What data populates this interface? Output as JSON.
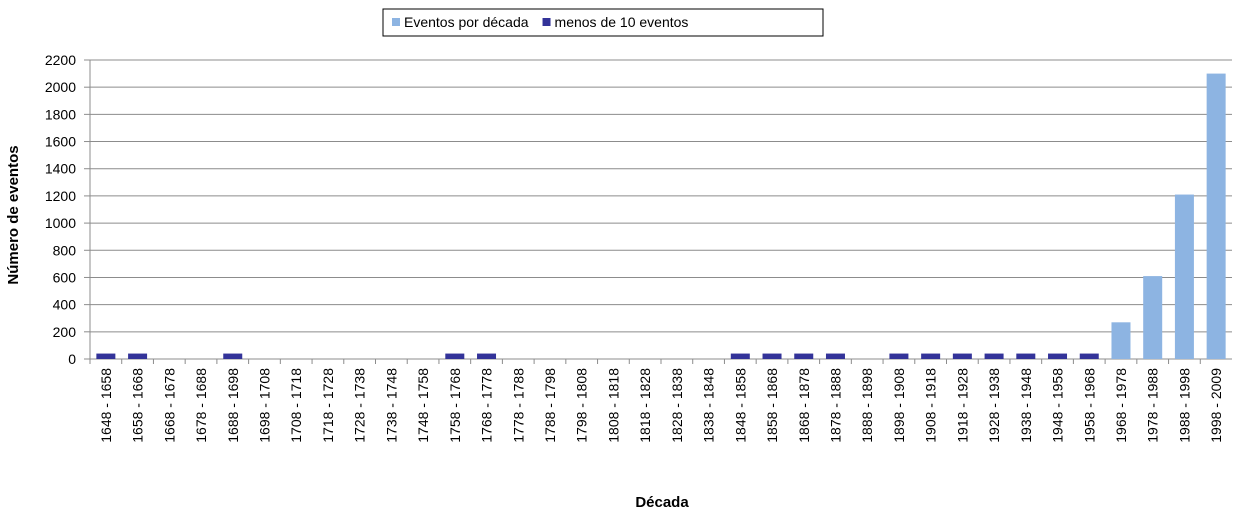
{
  "chart_data": {
    "type": "bar",
    "x_label": "Década",
    "y_label": "Número de eventos",
    "categories": [
      "1648 - 1658",
      "1658 - 1668",
      "1668 - 1678",
      "1678 - 1688",
      "1688 - 1698",
      "1698 - 1708",
      "1708 - 1718",
      "1718 - 1728",
      "1728 - 1738",
      "1738 - 1748",
      "1748 - 1758",
      "1758 - 1768",
      "1768 - 1778",
      "1778 - 1788",
      "1788 - 1798",
      "1798 - 1808",
      "1808 - 1818",
      "1818 - 1828",
      "1828 - 1838",
      "1838 - 1848",
      "1848 - 1858",
      "1858 - 1868",
      "1868 - 1878",
      "1878 - 1888",
      "1888 - 1898",
      "1898 - 1908",
      "1908 - 1918",
      "1918 - 1928",
      "1928 - 1938",
      "1938 - 1948",
      "1948 - 1958",
      "1958 - 1968",
      "1968 - 1978",
      "1978 - 1988",
      "1988 - 1998",
      "1998 - 2009"
    ],
    "series": [
      {
        "name": "Eventos por década",
        "color": "#8db4e2",
        "values": [
          null,
          null,
          null,
          null,
          null,
          null,
          null,
          null,
          null,
          null,
          null,
          null,
          null,
          null,
          null,
          null,
          null,
          null,
          null,
          null,
          null,
          null,
          null,
          null,
          null,
          null,
          null,
          null,
          null,
          null,
          null,
          null,
          270,
          610,
          1210,
          2100
        ]
      },
      {
        "name": "menos de 10 eventos",
        "color": "#333399",
        "values": [
          40,
          40,
          null,
          null,
          40,
          null,
          null,
          null,
          null,
          null,
          null,
          40,
          40,
          null,
          null,
          null,
          null,
          null,
          null,
          null,
          40,
          40,
          40,
          40,
          null,
          40,
          40,
          40,
          40,
          40,
          40,
          40,
          null,
          null,
          null,
          null
        ]
      }
    ],
    "ylim": [
      0,
      2200
    ],
    "yticks": [
      0,
      200,
      400,
      600,
      800,
      1000,
      1200,
      1400,
      1600,
      1800,
      2000,
      2200
    ],
    "grid": true,
    "legend": "top"
  }
}
